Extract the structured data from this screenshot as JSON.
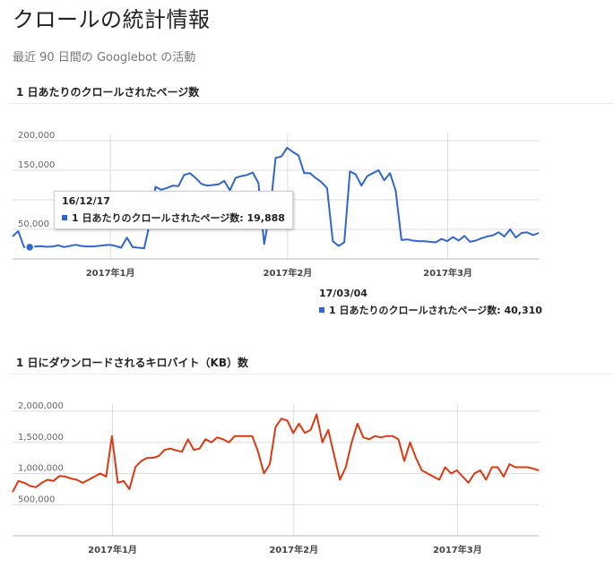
{
  "page": {
    "title": "クロールの統計情報",
    "subtitle": "最近 90 日間の Googlebot の活動"
  },
  "charts": {
    "pages": {
      "title": "1 日あたりのクロールされたページ数",
      "tooltip_a": {
        "date": "16/12/17",
        "series": "1 日あたりのクロールされたページ数: ",
        "value": "19,888"
      },
      "tooltip_b": {
        "date": "17/03/04",
        "series": "1 日あたりのクロールされたページ数: ",
        "value": "40,310"
      }
    },
    "kb": {
      "title": "1 日にダウンロードされるキロバイト（KB）数"
    }
  },
  "chart_data": [
    {
      "type": "line",
      "title": "1 日あたりのクロールされたページ数",
      "color": "#3366cc",
      "ylim": [
        0,
        200000
      ],
      "yticks": [
        50000,
        100000,
        150000,
        200000
      ],
      "ytick_labels": [
        "50,000",
        "",
        "150,000",
        "200,000"
      ],
      "xtick_labels": [
        "2017年1月",
        "2017年2月",
        "2017年3月"
      ],
      "xtick_index": [
        17.1,
        48.1,
        76.1
      ],
      "grid": true,
      "series": [
        {
          "values": [
            38000,
            47000,
            20000,
            19888,
            21000,
            21500,
            20500,
            21000,
            23000,
            20000,
            22000,
            24000,
            22000,
            21000,
            21000,
            22000,
            23000,
            24000,
            22000,
            19000,
            36000,
            20000,
            19000,
            18000,
            60000,
            122000,
            117000,
            120000,
            124000,
            123000,
            142000,
            145000,
            137000,
            127000,
            124000,
            125000,
            126000,
            132000,
            116000,
            137000,
            140000,
            142000,
            146000,
            128000,
            25000,
            79000,
            171000,
            173000,
            188000,
            181000,
            175000,
            145000,
            145000,
            137000,
            130000,
            120000,
            30000,
            22000,
            28000,
            148000,
            143000,
            124000,
            140000,
            145000,
            150000,
            133000,
            145000,
            115000,
            32000,
            33000,
            31000,
            30000,
            30000,
            29000,
            28000,
            34000,
            30000,
            37000,
            31000,
            39000,
            29000,
            31000,
            35000,
            38000,
            40000,
            45000,
            38000,
            50000,
            36000,
            44000,
            45000,
            40310,
            44000
          ]
        }
      ]
    },
    {
      "type": "line",
      "title": "1 日にダウンロードされるキロバイト（KB）数",
      "color": "#dc3912",
      "ylim": [
        0,
        2000000
      ],
      "yticks": [
        500000,
        1000000,
        1500000,
        2000000
      ],
      "ytick_labels": [
        "500,000",
        "1,000,000",
        "1,500,000",
        "2,000,000"
      ],
      "xtick_labels": [
        "2017年1月",
        "2017年2月",
        "2017年3月"
      ],
      "xtick_index": [
        17.1,
        48.1,
        76.1
      ],
      "grid": true,
      "series": [
        {
          "values": [
            700000,
            880000,
            850000,
            800000,
            780000,
            850000,
            900000,
            880000,
            960000,
            950000,
            920000,
            900000,
            850000,
            900000,
            950000,
            1000000,
            950000,
            1600000,
            850000,
            880000,
            750000,
            1100000,
            1200000,
            1250000,
            1250000,
            1280000,
            1380000,
            1400000,
            1370000,
            1350000,
            1550000,
            1380000,
            1400000,
            1550000,
            1500000,
            1580000,
            1550000,
            1500000,
            1600000,
            1600000,
            1600000,
            1600000,
            1350000,
            1000000,
            1150000,
            1750000,
            1880000,
            1850000,
            1650000,
            1800000,
            1650000,
            1700000,
            1950000,
            1500000,
            1700000,
            1300000,
            900000,
            1100000,
            1500000,
            1800000,
            1580000,
            1550000,
            1600000,
            1580000,
            1600000,
            1600000,
            1550000,
            1200000,
            1500000,
            1250000,
            1050000,
            1000000,
            950000,
            900000,
            1100000,
            1000000,
            1050000,
            950000,
            850000,
            1000000,
            1050000,
            900000,
            1100000,
            1100000,
            950000,
            1150000,
            1100000,
            1100000,
            1100000,
            1080000,
            1050000
          ]
        }
      ]
    }
  ]
}
